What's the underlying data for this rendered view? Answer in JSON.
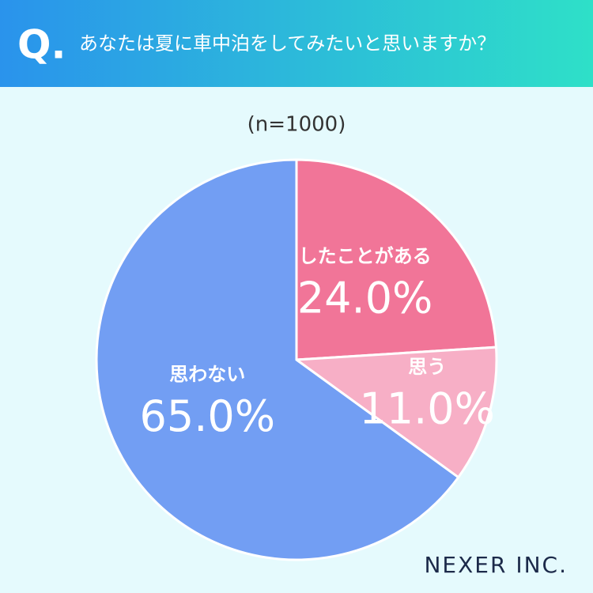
{
  "chart_data": {
    "type": "pie",
    "title_marker": "Q.",
    "title": "あなたは夏に車中泊をしてみたいと思いますか？",
    "subtitle": "(n=1000)",
    "categories": [
      "したことがある",
      "思う",
      "思わない"
    ],
    "values": [
      24.0,
      11.0,
      65.0
    ],
    "value_labels": [
      "24.0%",
      "11.0%",
      "65.0%"
    ],
    "colors": [
      "#f17598",
      "#f7afc6",
      "#729ef3"
    ],
    "logo": "NEXER INC."
  }
}
